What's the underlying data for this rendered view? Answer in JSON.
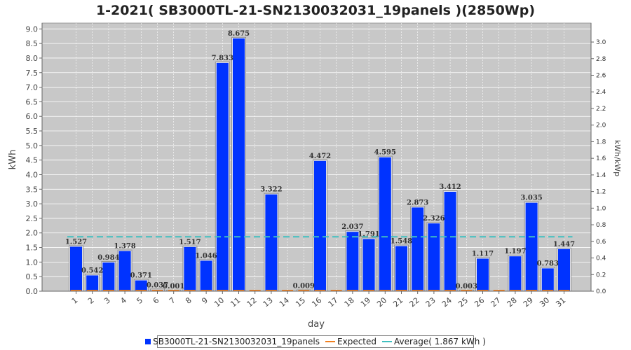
{
  "chart_data": {
    "type": "bar",
    "title": "1-2021( SB3000TL-21-SN2130032031_19panels )(2850Wp)",
    "xlabel": "day",
    "ylabel": "kWh",
    "y2label": "kWh/kWp",
    "ylim": [
      0,
      9.2
    ],
    "y2lim": [
      0,
      3.228
    ],
    "yticks": [
      "0.0",
      "0.5",
      "1.0",
      "1.5",
      "2.0",
      "2.5",
      "3.0",
      "3.5",
      "4.0",
      "4.5",
      "5.0",
      "5.5",
      "6.0",
      "6.5",
      "7.0",
      "7.5",
      "8.0",
      "8.5",
      "9.0"
    ],
    "y2ticks": [
      "0.0",
      "0.2",
      "0.4",
      "0.6",
      "0.8",
      "1.0",
      "1.2",
      "1.4",
      "1.6",
      "1.8",
      "2.0",
      "2.2",
      "2.4",
      "2.6",
      "2.8",
      "3.0"
    ],
    "categories": [
      "1",
      "2",
      "3",
      "4",
      "5",
      "6",
      "7",
      "8",
      "9",
      "10",
      "11",
      "12",
      "13",
      "14",
      "15",
      "16",
      "17",
      "18",
      "19",
      "20",
      "21",
      "22",
      "23",
      "24",
      "25",
      "26",
      "27",
      "28",
      "29",
      "30",
      "31"
    ],
    "series": [
      {
        "name": "SB3000TL-21-SN2130032031_19panels",
        "color": "#0033ff",
        "values": [
          1.527,
          0.542,
          0.984,
          1.378,
          0.371,
          0.037,
          0.001,
          1.517,
          1.046,
          7.833,
          8.675,
          0,
          3.322,
          0,
          0.009,
          4.472,
          0,
          2.037,
          1.791,
          4.595,
          1.548,
          2.873,
          2.326,
          3.412,
          0.003,
          1.117,
          0,
          1.197,
          3.035,
          0.783,
          1.447
        ],
        "labels": [
          "1.527",
          "0.542",
          "0.984",
          "1.378",
          "0.371",
          "0.037",
          "0.001",
          "1.517",
          "1.046",
          "7.833",
          "8.675",
          "",
          "3.322",
          "",
          "0.009",
          "4.472",
          "",
          "2.037",
          "1.791",
          "4.595",
          "1.548",
          "2.873",
          "2.326",
          "3.412",
          "0.003",
          "1.117",
          "",
          "1.197",
          "3.035",
          "0.783",
          "1.447"
        ]
      },
      {
        "name": "Expected",
        "color": "#f08020",
        "values": [
          0,
          0,
          0,
          0,
          0,
          0,
          0,
          0,
          0,
          0,
          0,
          0,
          0,
          0,
          0,
          0,
          0,
          0,
          0,
          0,
          0,
          0,
          0,
          0,
          0,
          0,
          0,
          0,
          0,
          0,
          0
        ]
      }
    ],
    "average": {
      "name": "Average( 1.867 kWh )",
      "value": 1.867,
      "color": "#40c0c0"
    },
    "grid": true,
    "plot_background": "#c8c8c8",
    "legend_position": "bottom"
  }
}
